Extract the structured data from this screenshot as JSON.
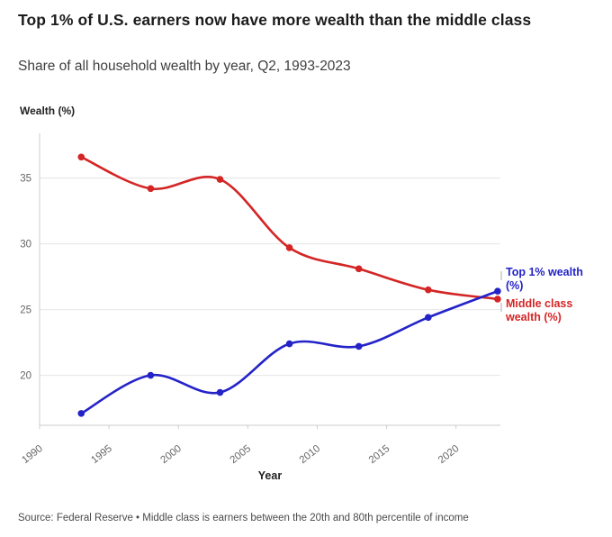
{
  "header": {
    "title": "Top 1% of U.S. earners now have more wealth than the middle class",
    "subtitle": "Share of all household wealth by year, Q2, 1993-2023"
  },
  "chart_data": {
    "type": "line",
    "title": "Top 1% of U.S. earners now have more wealth than the middle class",
    "subtitle": "Share of all household wealth by year, Q2, 1993-2023",
    "xlabel": "Year",
    "ylabel": "Wealth (%)",
    "x": [
      1993,
      1998,
      2003,
      2008,
      2013,
      2018,
      2023
    ],
    "series": [
      {
        "name": "Top 1% wealth (%)",
        "color": "#2323c8",
        "values": [
          17.1,
          20.0,
          18.7,
          22.4,
          22.2,
          24.4,
          26.4
        ]
      },
      {
        "name": "Middle class wealth (%)",
        "color": "#d42525",
        "values": [
          36.6,
          34.2,
          34.9,
          29.7,
          28.1,
          26.5,
          25.8
        ]
      }
    ],
    "xticks": [
      1990,
      1995,
      2000,
      2005,
      2010,
      2015,
      2020
    ],
    "yticks": [
      20,
      25,
      30,
      35
    ],
    "xlim": [
      1990,
      2023.2
    ],
    "ylim": [
      16.2,
      38.4
    ],
    "grid": "horizontal",
    "legend_position": "right-of-line-ends"
  },
  "colors": {
    "grid": "#e9e9e9",
    "axis": "#cccccc",
    "tick_text": "#666666",
    "legend_tick": "#c8c8c8"
  },
  "footer": {
    "source": "Source: Federal Reserve • Middle class is earners between the 20th and 80th percentile of income"
  }
}
